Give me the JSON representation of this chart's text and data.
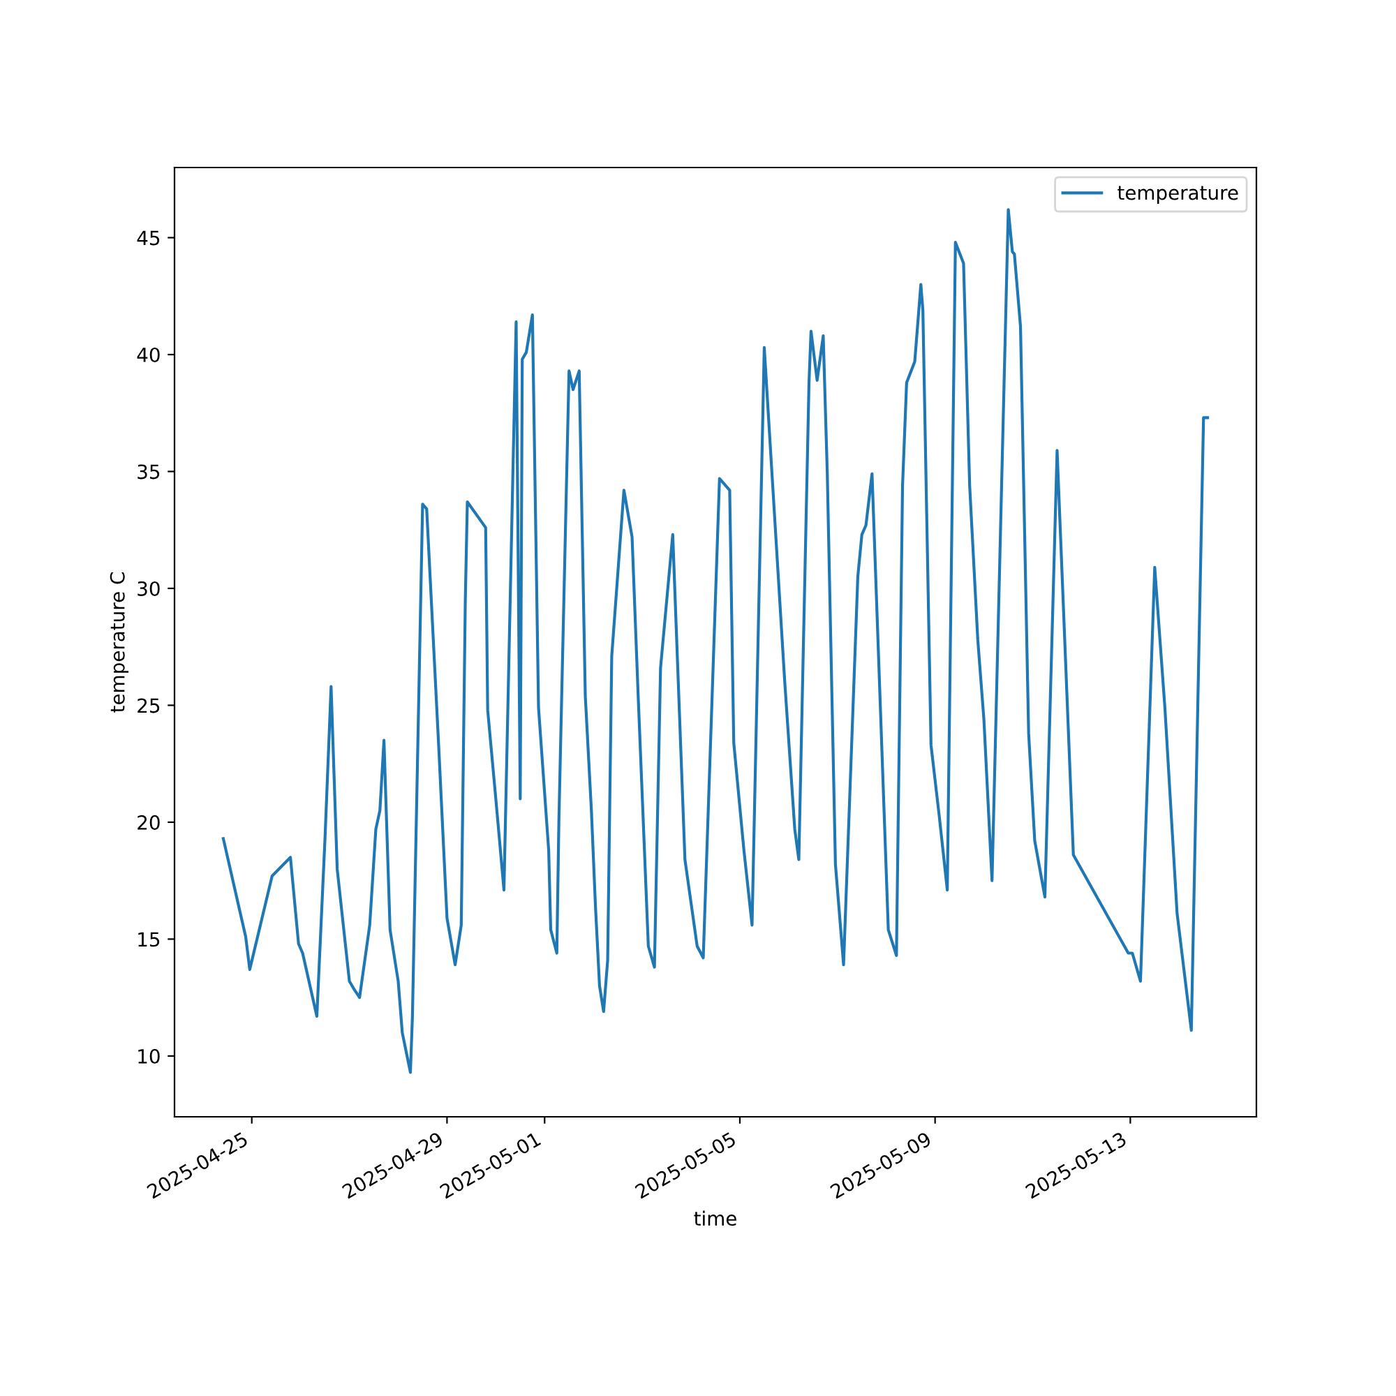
{
  "chart_data": {
    "type": "line",
    "xlabel": "time",
    "ylabel": "temperature C",
    "x": [
      "2025-04-24T10:00",
      "2025-04-24T21:00",
      "2025-04-24T23:00",
      "2025-04-25T10:00",
      "2025-04-25T19:00",
      "2025-04-25T23:00",
      "2025-04-26T01:00",
      "2025-04-26T08:00",
      "2025-04-26T12:00",
      "2025-04-26T15:00",
      "2025-04-26T18:00",
      "2025-04-27T00:00",
      "2025-04-27T02:00",
      "2025-04-27T05:00",
      "2025-04-27T10:00",
      "2025-04-27T13:00",
      "2025-04-27T15:00",
      "2025-04-27T17:00",
      "2025-04-27T20:00",
      "2025-04-28T00:00",
      "2025-04-28T02:00",
      "2025-04-28T06:00",
      "2025-04-28T07:00",
      "2025-04-28T12:00",
      "2025-04-28T14:00",
      "2025-04-28T20:00",
      "2025-04-29T00:00",
      "2025-04-29T04:00",
      "2025-04-29T07:00",
      "2025-04-29T09:00",
      "2025-04-29T10:00",
      "2025-04-29T19:00",
      "2025-04-29T20:00",
      "2025-04-30T00:00",
      "2025-04-30T04:00",
      "2025-04-30T10:00",
      "2025-04-30T12:00",
      "2025-04-30T13:00",
      "2025-04-30T15:00",
      "2025-04-30T18:00",
      "2025-04-30T21:00",
      "2025-05-01T02:00",
      "2025-05-01T03:00",
      "2025-05-01T06:00",
      "2025-05-01T07:00",
      "2025-05-01T12:00",
      "2025-05-01T14:00",
      "2025-05-01T17:00",
      "2025-05-01T20:00",
      "2025-05-01T23:00",
      "2025-05-02T01:00",
      "2025-05-02T03:00",
      "2025-05-02T05:00",
      "2025-05-02T07:00",
      "2025-05-02T09:00",
      "2025-05-02T15:00",
      "2025-05-02T19:00",
      "2025-05-02T22:00",
      "2025-05-03T03:00",
      "2025-05-03T06:00",
      "2025-05-03T09:00",
      "2025-05-03T15:00",
      "2025-05-03T21:00",
      "2025-05-04T03:00",
      "2025-05-04T06:00",
      "2025-05-04T14:00",
      "2025-05-04T19:00",
      "2025-05-04T21:00",
      "2025-05-05T02:00",
      "2025-05-05T06:00",
      "2025-05-05T12:00",
      "2025-05-05T22:00",
      "2025-05-06T03:00",
      "2025-05-06T05:00",
      "2025-05-06T10:00",
      "2025-05-06T11:00",
      "2025-05-06T14:00",
      "2025-05-06T17:00",
      "2025-05-06T19:00",
      "2025-05-06T23:00",
      "2025-05-07T03:00",
      "2025-05-07T10:00",
      "2025-05-07T12:00",
      "2025-05-07T14:00",
      "2025-05-07T17:00",
      "2025-05-08T01:00",
      "2025-05-08T05:00",
      "2025-05-08T08:00",
      "2025-05-08T10:00",
      "2025-05-08T14:00",
      "2025-05-08T17:00",
      "2025-05-08T18:00",
      "2025-05-08T22:00",
      "2025-05-09T02:00",
      "2025-05-09T06:00",
      "2025-05-09T10:00",
      "2025-05-09T14:00",
      "2025-05-09T17:00",
      "2025-05-09T21:00",
      "2025-05-10T00:00",
      "2025-05-10T04:00",
      "2025-05-10T12:00",
      "2025-05-10T14:00",
      "2025-05-10T15:00",
      "2025-05-10T18:00",
      "2025-05-10T22:00",
      "2025-05-11T01:00",
      "2025-05-11T06:00",
      "2025-05-11T12:00",
      "2025-05-11T20:00",
      "2025-05-12T23:00",
      "2025-05-13T01:00",
      "2025-05-13T05:00",
      "2025-05-13T12:00",
      "2025-05-13T17:00",
      "2025-05-13T23:00",
      "2025-05-14T06:00",
      "2025-05-14T12:00",
      "2025-05-14T14:00"
    ],
    "series": [
      {
        "name": "temperature",
        "color": "#1f77b4",
        "values": [
          19.3,
          15.1,
          13.7,
          17.7,
          18.5,
          14.8,
          14.4,
          11.7,
          19.3,
          25.8,
          18.0,
          13.2,
          12.9,
          12.5,
          15.6,
          19.7,
          20.5,
          23.5,
          15.4,
          13.2,
          11.0,
          9.3,
          11.7,
          33.6,
          33.4,
          23.1,
          15.9,
          13.9,
          15.6,
          29.5,
          33.7,
          32.6,
          24.8,
          21.0,
          17.1,
          41.4,
          21.0,
          39.8,
          40.1,
          41.7,
          24.9,
          18.8,
          15.4,
          14.4,
          20.0,
          39.3,
          38.5,
          39.3,
          25.4,
          20.5,
          16.4,
          13.0,
          11.9,
          14.1,
          27.1,
          34.2,
          32.2,
          25.4,
          14.7,
          13.8,
          26.6,
          32.3,
          18.4,
          14.7,
          14.2,
          34.7,
          34.2,
          23.4,
          18.8,
          15.6,
          40.3,
          26.1,
          19.7,
          18.4,
          38.8,
          41.0,
          38.9,
          40.8,
          34.9,
          18.2,
          13.9,
          30.5,
          32.3,
          32.7,
          34.9,
          15.4,
          14.3,
          34.4,
          38.8,
          39.7,
          43.0,
          41.9,
          23.3,
          20.3,
          17.1,
          44.8,
          43.9,
          34.4,
          27.8,
          24.4,
          17.5,
          46.2,
          44.4,
          44.3,
          41.2,
          23.8,
          19.2,
          16.8,
          35.9,
          18.6,
          14.4,
          14.4,
          13.2,
          30.9,
          24.9,
          16.1,
          11.1,
          37.3,
          37.3
        ]
      }
    ],
    "xlim": [
      "2025-04-23T10:00",
      "2025-05-15T14:00"
    ],
    "xticks": [
      "2025-04-25",
      "2025-04-29",
      "2025-05-01",
      "2025-05-05",
      "2025-05-09",
      "2025-05-13"
    ],
    "ylim": [
      7.4,
      48.0
    ],
    "yticks": [
      10,
      15,
      20,
      25,
      30,
      35,
      40,
      45
    ],
    "legend": "upper right",
    "grid": false,
    "marker": "none",
    "line_style": "solid"
  }
}
